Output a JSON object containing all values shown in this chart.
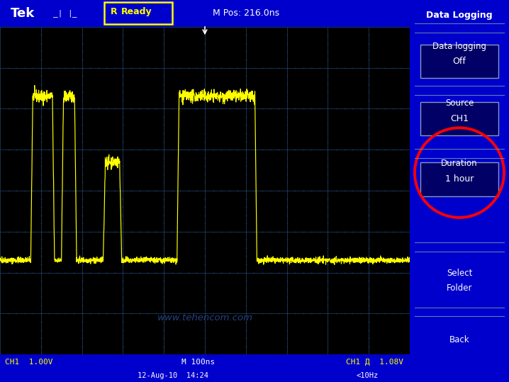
{
  "bg_color": "#0000CC",
  "screen_bg": "#000000",
  "grid_color": "#1a3a5c",
  "signal_color": "#FFFF00",
  "text_color": "#FFFFFF",
  "yellow_text": "#FFFF00",
  "title_top": "Tek",
  "ready_text": "R  Ready",
  "mpos_text": "M Pos: 216.0ns",
  "panel_title": "Data Logging",
  "bottom_left": "CH1  1.00V",
  "bottom_mid": "M 100ns",
  "bottom_right": "CH1 Д  1.08V",
  "bottom_date": "12-Aug-10  14:24",
  "bottom_freq": "<10Hz",
  "watermark": "www.tehencom.com",
  "grid_nx": 10,
  "grid_ny": 8,
  "baseline": 2.3,
  "high1": 6.3,
  "high2": 4.7,
  "figsize": [
    7.18,
    5.39
  ],
  "dpi": 100
}
